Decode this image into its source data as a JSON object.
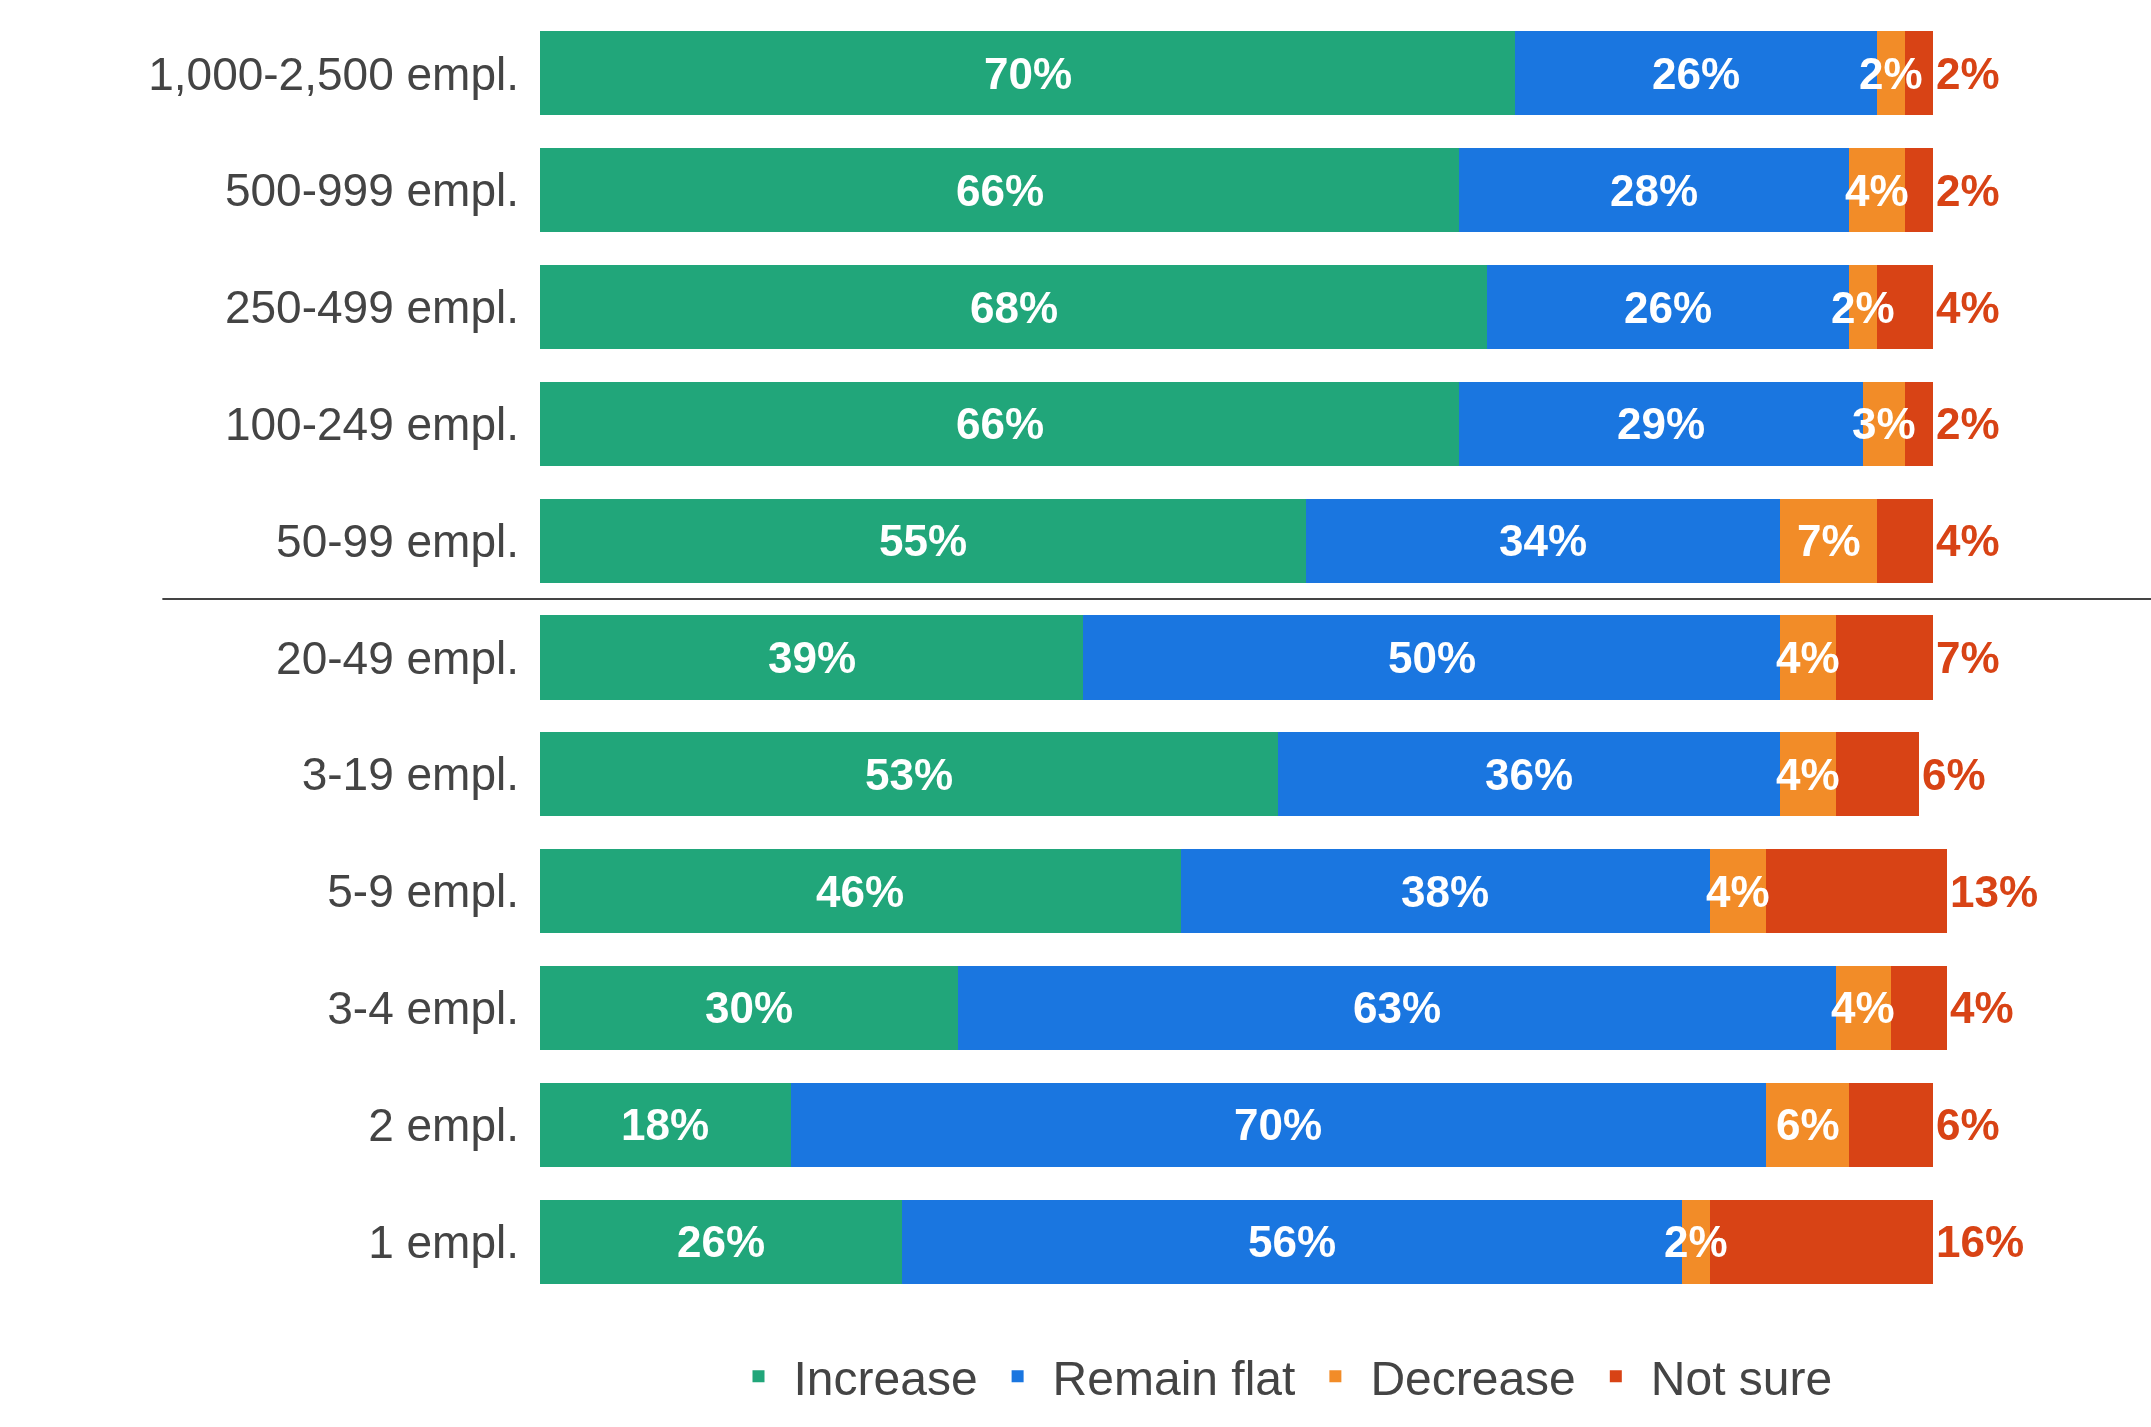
{
  "chart_data": {
    "type": "bar",
    "orientation": "horizontal",
    "stacked": true,
    "legend": "bottom",
    "categories": [
      "1,000-2,500 empl.",
      "500-999 empl.",
      "250-499 empl.",
      "100-249 empl.",
      "50-99 empl.",
      "20-49 empl.",
      "3-19 empl.",
      "5-9 empl.",
      "3-4 empl.",
      "2 empl.",
      "1 empl."
    ],
    "series": [
      {
        "name": "Increase",
        "color": "#21a67a",
        "values": [
          70,
          66,
          68,
          66,
          55,
          39,
          53,
          46,
          30,
          18,
          26
        ],
        "value_labels": [
          "70%",
          "66%",
          "68%",
          "66%",
          "55%",
          "39%",
          "53%",
          "46%",
          "30%",
          "18%",
          "26%"
        ]
      },
      {
        "name": "Remain flat",
        "color": "#1a76e0",
        "values": [
          26,
          28,
          26,
          29,
          34,
          50,
          36,
          38,
          63,
          70,
          56
        ],
        "value_labels": [
          "26%",
          "28%",
          "26%",
          "29%",
          "34%",
          "50%",
          "36%",
          "38%",
          "63%",
          "70%",
          "56%"
        ]
      },
      {
        "name": "Decrease",
        "color": "#f28c28",
        "values": [
          2,
          4,
          2,
          3,
          7,
          4,
          4,
          4,
          4,
          6,
          2
        ],
        "value_labels": [
          "2%",
          "4%",
          "2%",
          "3%",
          "7%",
          "4%",
          "4%",
          "4%",
          "4%",
          "6%",
          "2%"
        ]
      },
      {
        "name": "Not sure",
        "color": "#d84315",
        "values": [
          2,
          2,
          4,
          2,
          4,
          7,
          6,
          13,
          4,
          6,
          16
        ],
        "value_labels": [
          "2%",
          "2%",
          "4%",
          "2%",
          "4%",
          "7%",
          "6%",
          "13%",
          "4%",
          "6%",
          "16%"
        ]
      }
    ]
  }
}
